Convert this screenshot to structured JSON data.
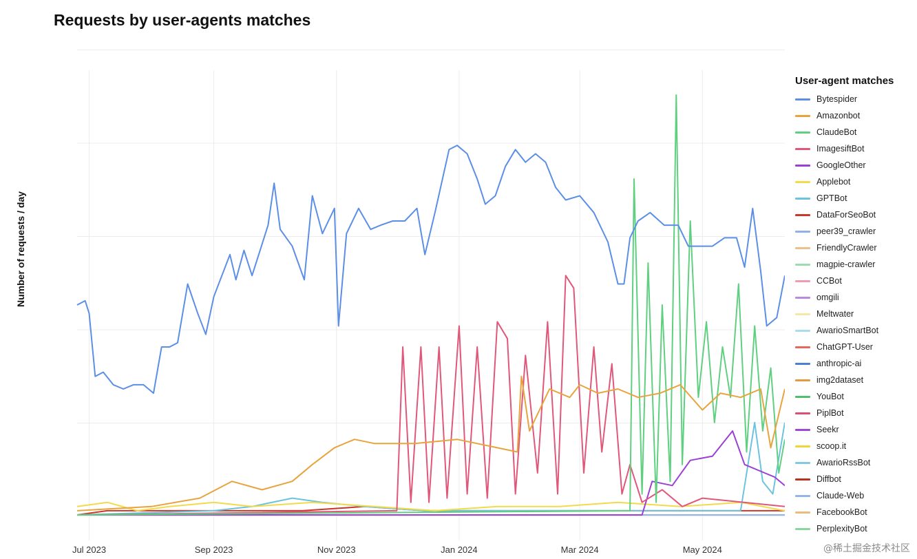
{
  "chart_data": {
    "type": "line",
    "title": "Requests by user-agents matches",
    "xlabel": "",
    "ylabel": "Number of requests / day",
    "x_ticks": [
      "Jul 2023",
      "Sep 2023",
      "Nov 2023",
      "Jan 2024",
      "Mar 2024",
      "May 2024"
    ],
    "x_tick_dates": [
      "2023-07-01",
      "2023-09-01",
      "2023-11-01",
      "2024-01-01",
      "2024-03-01",
      "2024-05-01"
    ],
    "x_range": [
      "2023-06-25",
      "2024-06-11"
    ],
    "y_range": [
      0,
      100
    ],
    "y_tick_labels_shown": false,
    "grid": true,
    "legend_title": "User-agent matches",
    "legend_position": "right",
    "series": [
      {
        "name": "Bytespider",
        "color": "#5b8ee6",
        "points": [
          [
            "2023-06-25",
            50
          ],
          [
            "2023-06-29",
            51
          ],
          [
            "2023-07-01",
            48
          ],
          [
            "2023-07-04",
            33
          ],
          [
            "2023-07-08",
            34
          ],
          [
            "2023-07-13",
            31
          ],
          [
            "2023-07-18",
            30
          ],
          [
            "2023-07-23",
            31
          ],
          [
            "2023-07-28",
            31
          ],
          [
            "2023-08-02",
            29
          ],
          [
            "2023-08-06",
            40
          ],
          [
            "2023-08-10",
            40
          ],
          [
            "2023-08-14",
            41
          ],
          [
            "2023-08-19",
            55
          ],
          [
            "2023-08-24",
            48
          ],
          [
            "2023-08-28",
            43
          ],
          [
            "2023-09-01",
            52
          ],
          [
            "2023-09-05",
            57
          ],
          [
            "2023-09-09",
            62
          ],
          [
            "2023-09-12",
            56
          ],
          [
            "2023-09-16",
            63
          ],
          [
            "2023-09-20",
            57
          ],
          [
            "2023-09-24",
            63
          ],
          [
            "2023-09-28",
            69
          ],
          [
            "2023-10-01",
            79
          ],
          [
            "2023-10-04",
            68
          ],
          [
            "2023-10-10",
            64
          ],
          [
            "2023-10-16",
            56
          ],
          [
            "2023-10-20",
            76
          ],
          [
            "2023-10-25",
            67
          ],
          [
            "2023-10-31",
            73
          ],
          [
            "2023-11-02",
            45
          ],
          [
            "2023-11-06",
            67
          ],
          [
            "2023-11-12",
            73
          ],
          [
            "2023-11-18",
            68
          ],
          [
            "2023-11-23",
            69
          ],
          [
            "2023-11-29",
            70
          ],
          [
            "2023-12-05",
            70
          ],
          [
            "2023-12-11",
            73
          ],
          [
            "2023-12-15",
            62
          ],
          [
            "2023-12-20",
            72
          ],
          [
            "2023-12-27",
            87
          ],
          [
            "2023-12-31",
            88
          ],
          [
            "2024-01-05",
            86
          ],
          [
            "2024-01-10",
            80
          ],
          [
            "2024-01-14",
            74
          ],
          [
            "2024-01-19",
            76
          ],
          [
            "2024-01-24",
            83
          ],
          [
            "2024-01-29",
            87
          ],
          [
            "2024-02-03",
            84
          ],
          [
            "2024-02-08",
            86
          ],
          [
            "2024-02-13",
            84
          ],
          [
            "2024-02-18",
            78
          ],
          [
            "2024-02-23",
            75
          ],
          [
            "2024-03-01",
            76
          ],
          [
            "2024-03-08",
            72
          ],
          [
            "2024-03-15",
            65
          ],
          [
            "2024-03-20",
            55
          ],
          [
            "2024-03-23",
            55
          ],
          [
            "2024-03-26",
            66
          ],
          [
            "2024-03-30",
            70
          ],
          [
            "2024-04-05",
            72
          ],
          [
            "2024-04-12",
            69
          ],
          [
            "2024-04-19",
            69
          ],
          [
            "2024-04-24",
            64
          ],
          [
            "2024-04-30",
            64
          ],
          [
            "2024-05-06",
            64
          ],
          [
            "2024-05-12",
            66
          ],
          [
            "2024-05-18",
            66
          ],
          [
            "2024-05-22",
            59
          ],
          [
            "2024-05-26",
            73
          ],
          [
            "2024-05-30",
            58
          ],
          [
            "2024-06-02",
            45
          ],
          [
            "2024-06-07",
            47
          ],
          [
            "2024-06-11",
            57
          ]
        ]
      },
      {
        "name": "Amazonbot",
        "color": "#e8a33d",
        "points": [
          [
            "2023-06-25",
            1
          ],
          [
            "2023-08-01",
            2
          ],
          [
            "2023-08-25",
            4
          ],
          [
            "2023-09-10",
            8
          ],
          [
            "2023-09-25",
            6
          ],
          [
            "2023-10-10",
            8
          ],
          [
            "2023-10-20",
            12
          ],
          [
            "2023-10-31",
            16
          ],
          [
            "2023-11-10",
            18
          ],
          [
            "2023-11-20",
            17
          ],
          [
            "2023-12-10",
            17
          ],
          [
            "2023-12-31",
            18
          ],
          [
            "2024-01-20",
            16
          ],
          [
            "2024-01-30",
            15
          ],
          [
            "2024-02-01",
            33
          ],
          [
            "2024-02-05",
            20
          ],
          [
            "2024-02-15",
            30
          ],
          [
            "2024-02-25",
            28
          ],
          [
            "2024-03-01",
            31
          ],
          [
            "2024-03-10",
            29
          ],
          [
            "2024-03-20",
            30
          ],
          [
            "2024-03-30",
            28
          ],
          [
            "2024-04-10",
            29
          ],
          [
            "2024-04-20",
            31
          ],
          [
            "2024-05-01",
            25
          ],
          [
            "2024-05-10",
            29
          ],
          [
            "2024-05-20",
            28
          ],
          [
            "2024-05-30",
            30
          ],
          [
            "2024-06-04",
            16
          ],
          [
            "2024-06-11",
            30
          ]
        ]
      },
      {
        "name": "ClaudeBot",
        "color": "#5fcf80",
        "points": [
          [
            "2023-06-25",
            0
          ],
          [
            "2024-03-26",
            1
          ],
          [
            "2024-03-28",
            80
          ],
          [
            "2024-04-01",
            5
          ],
          [
            "2024-04-04",
            60
          ],
          [
            "2024-04-08",
            3
          ],
          [
            "2024-04-11",
            50
          ],
          [
            "2024-04-15",
            8
          ],
          [
            "2024-04-18",
            100
          ],
          [
            "2024-04-21",
            12
          ],
          [
            "2024-04-25",
            70
          ],
          [
            "2024-04-29",
            28
          ],
          [
            "2024-05-03",
            46
          ],
          [
            "2024-05-07",
            22
          ],
          [
            "2024-05-11",
            40
          ],
          [
            "2024-05-15",
            28
          ],
          [
            "2024-05-19",
            55
          ],
          [
            "2024-05-23",
            15
          ],
          [
            "2024-05-27",
            45
          ],
          [
            "2024-05-31",
            20
          ],
          [
            "2024-06-04",
            35
          ],
          [
            "2024-06-08",
            10
          ],
          [
            "2024-06-11",
            18
          ]
        ]
      },
      {
        "name": "ImagesiftBot",
        "color": "#e0577a",
        "points": [
          [
            "2023-06-25",
            0
          ],
          [
            "2023-12-01",
            1
          ],
          [
            "2023-12-04",
            40
          ],
          [
            "2023-12-08",
            3
          ],
          [
            "2023-12-13",
            40
          ],
          [
            "2023-12-17",
            3
          ],
          [
            "2023-12-22",
            40
          ],
          [
            "2023-12-26",
            4
          ],
          [
            "2024-01-01",
            45
          ],
          [
            "2024-01-05",
            5
          ],
          [
            "2024-01-10",
            40
          ],
          [
            "2024-01-15",
            4
          ],
          [
            "2024-01-20",
            46
          ],
          [
            "2024-01-25",
            42
          ],
          [
            "2024-01-29",
            5
          ],
          [
            "2024-02-03",
            38
          ],
          [
            "2024-02-09",
            10
          ],
          [
            "2024-02-14",
            46
          ],
          [
            "2024-02-19",
            5
          ],
          [
            "2024-02-23",
            57
          ],
          [
            "2024-02-27",
            54
          ],
          [
            "2024-03-03",
            10
          ],
          [
            "2024-03-08",
            40
          ],
          [
            "2024-03-12",
            15
          ],
          [
            "2024-03-17",
            36
          ],
          [
            "2024-03-22",
            5
          ],
          [
            "2024-03-26",
            12
          ],
          [
            "2024-04-01",
            3
          ],
          [
            "2024-04-11",
            6
          ],
          [
            "2024-04-21",
            2
          ],
          [
            "2024-05-01",
            4
          ],
          [
            "2024-06-11",
            2
          ]
        ]
      },
      {
        "name": "GoogleOther",
        "color": "#9b3fd6",
        "points": [
          [
            "2023-06-25",
            0
          ],
          [
            "2024-04-01",
            0
          ],
          [
            "2024-04-06",
            8
          ],
          [
            "2024-04-16",
            7
          ],
          [
            "2024-04-25",
            13
          ],
          [
            "2024-05-06",
            14
          ],
          [
            "2024-05-16",
            20
          ],
          [
            "2024-05-22",
            12
          ],
          [
            "2024-06-01",
            10
          ],
          [
            "2024-06-06",
            9
          ],
          [
            "2024-06-11",
            7
          ]
        ]
      },
      {
        "name": "Applebot",
        "color": "#f3da4a",
        "points": [
          [
            "2023-06-25",
            2
          ],
          [
            "2023-07-10",
            3
          ],
          [
            "2023-07-25",
            1
          ],
          [
            "2023-08-10",
            2
          ],
          [
            "2023-09-01",
            3
          ],
          [
            "2023-09-20",
            2
          ],
          [
            "2023-10-20",
            3
          ],
          [
            "2023-11-20",
            2
          ],
          [
            "2023-12-20",
            1
          ],
          [
            "2024-01-20",
            2
          ],
          [
            "2024-02-20",
            2
          ],
          [
            "2024-03-20",
            3
          ],
          [
            "2024-04-20",
            2
          ],
          [
            "2024-05-20",
            3
          ],
          [
            "2024-06-11",
            1
          ]
        ]
      },
      {
        "name": "GPTBot",
        "color": "#6cc3df",
        "points": [
          [
            "2023-06-25",
            0
          ],
          [
            "2023-09-01",
            1
          ],
          [
            "2023-09-20",
            2
          ],
          [
            "2023-10-10",
            4
          ],
          [
            "2023-10-25",
            3
          ],
          [
            "2023-11-15",
            2
          ],
          [
            "2023-12-15",
            1
          ],
          [
            "2024-02-01",
            1
          ],
          [
            "2024-04-01",
            1
          ],
          [
            "2024-05-20",
            1
          ],
          [
            "2024-05-27",
            22
          ],
          [
            "2024-05-31",
            8
          ],
          [
            "2024-06-05",
            5
          ],
          [
            "2024-06-11",
            22
          ]
        ]
      },
      {
        "name": "DataForSeoBot",
        "color": "#c9392b",
        "points": [
          [
            "2023-06-25",
            0
          ],
          [
            "2023-07-10",
            1
          ],
          [
            "2023-08-20",
            1
          ],
          [
            "2023-09-15",
            1
          ],
          [
            "2023-10-15",
            1
          ],
          [
            "2023-11-15",
            2
          ],
          [
            "2023-12-15",
            1
          ],
          [
            "2024-01-15",
            1
          ],
          [
            "2024-02-15",
            1
          ],
          [
            "2024-03-15",
            1
          ],
          [
            "2024-04-15",
            1
          ],
          [
            "2024-05-15",
            1
          ],
          [
            "2024-06-11",
            1
          ]
        ]
      },
      {
        "name": "peer39_crawler",
        "color": "#8fb0ea",
        "points": [
          [
            "2023-06-25",
            0
          ],
          [
            "2024-06-11",
            0
          ]
        ]
      },
      {
        "name": "FriendlyCrawler",
        "color": "#edc08a",
        "points": [
          [
            "2023-06-25",
            0
          ],
          [
            "2024-06-11",
            0
          ]
        ]
      },
      {
        "name": "magpie-crawler",
        "color": "#9ddcae",
        "points": [
          [
            "2023-06-25",
            0
          ],
          [
            "2024-06-11",
            0
          ]
        ]
      },
      {
        "name": "CCBot",
        "color": "#ef9bb2",
        "points": [
          [
            "2023-06-25",
            0
          ],
          [
            "2024-06-11",
            0
          ]
        ]
      },
      {
        "name": "omgili",
        "color": "#b989e4",
        "points": [
          [
            "2023-06-25",
            0
          ],
          [
            "2024-06-11",
            0
          ]
        ]
      },
      {
        "name": "Meltwater",
        "color": "#f6e7a3",
        "points": [
          [
            "2023-06-25",
            0
          ],
          [
            "2024-06-11",
            0
          ]
        ]
      },
      {
        "name": "AwarioSmartBot",
        "color": "#a9dcef",
        "points": [
          [
            "2023-06-25",
            0
          ],
          [
            "2024-06-11",
            0
          ]
        ]
      },
      {
        "name": "ChatGPT-User",
        "color": "#e4685c",
        "points": [
          [
            "2023-06-25",
            0
          ],
          [
            "2024-06-11",
            0
          ]
        ]
      },
      {
        "name": "anthropic-ai",
        "color": "#4a7fd8",
        "points": [
          [
            "2023-06-25",
            0
          ],
          [
            "2024-06-11",
            0
          ]
        ]
      },
      {
        "name": "img2dataset",
        "color": "#e39a42",
        "points": [
          [
            "2023-06-25",
            0
          ],
          [
            "2024-06-11",
            0
          ]
        ]
      },
      {
        "name": "YouBot",
        "color": "#4fbf6e",
        "points": [
          [
            "2023-06-25",
            0
          ],
          [
            "2024-06-11",
            0
          ]
        ]
      },
      {
        "name": "PiplBot",
        "color": "#dc4f74",
        "points": [
          [
            "2023-06-25",
            0
          ],
          [
            "2024-06-11",
            0
          ]
        ]
      },
      {
        "name": "Seekr",
        "color": "#a046d8",
        "points": [
          [
            "2023-06-25",
            0
          ],
          [
            "2024-06-11",
            0
          ]
        ]
      },
      {
        "name": "scoop.it",
        "color": "#f1d33c",
        "points": [
          [
            "2023-06-25",
            0
          ],
          [
            "2024-06-11",
            0
          ]
        ]
      },
      {
        "name": "AwarioRssBot",
        "color": "#7fc9e2",
        "points": [
          [
            "2023-06-25",
            0
          ],
          [
            "2024-06-11",
            0
          ]
        ]
      },
      {
        "name": "Diffbot",
        "color": "#b8331f",
        "points": [
          [
            "2023-06-25",
            0
          ],
          [
            "2024-06-11",
            0
          ]
        ]
      },
      {
        "name": "Claude-Web",
        "color": "#94b4ec",
        "points": [
          [
            "2023-06-25",
            0
          ],
          [
            "2024-06-11",
            0
          ]
        ]
      },
      {
        "name": "FacebookBot",
        "color": "#ecbc7f",
        "points": [
          [
            "2023-06-25",
            0
          ],
          [
            "2024-06-11",
            0
          ]
        ]
      },
      {
        "name": "PerplexityBot",
        "color": "#89d7a0",
        "points": [
          [
            "2023-06-25",
            0
          ],
          [
            "2024-06-11",
            0
          ]
        ]
      }
    ]
  },
  "watermark": "@稀土掘金技术社区"
}
